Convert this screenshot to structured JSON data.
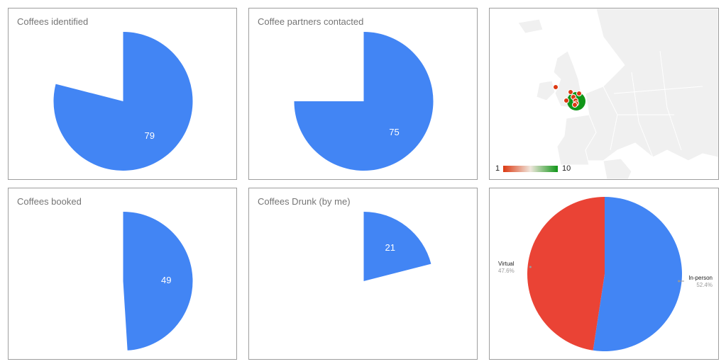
{
  "chart_data": [
    {
      "type": "pie",
      "title": "Coffees identified",
      "value": 79,
      "max": 100,
      "data_label": "79",
      "color": "#4285f4"
    },
    {
      "type": "pie",
      "title": "Coffee partners contacted",
      "value": 75,
      "max": 100,
      "data_label": "75",
      "color": "#4285f4"
    },
    {
      "type": "geo",
      "region": "Europe",
      "legend": {
        "min_label": "1",
        "max_label": "10",
        "min_color": "#dc3912",
        "mid_color": "#efe6dc",
        "max_color": "#109618"
      },
      "markers": [
        {
          "area": "Northern Ireland",
          "value": 1
        },
        {
          "area": "England (cluster)",
          "value": 10
        },
        {
          "area": "England",
          "value": 1
        },
        {
          "area": "England",
          "value": 1
        },
        {
          "area": "England",
          "value": 1
        },
        {
          "area": "England",
          "value": 1
        },
        {
          "area": "England",
          "value": 1
        },
        {
          "area": "England",
          "value": 1
        }
      ]
    },
    {
      "type": "pie",
      "title": "Coffees booked",
      "value": 49,
      "max": 100,
      "data_label": "49",
      "color": "#4285f4"
    },
    {
      "type": "pie",
      "title": "Coffees Drunk (by me)",
      "value": 21,
      "max": 100,
      "data_label": "21",
      "color": "#4285f4"
    },
    {
      "type": "pie",
      "title": "",
      "slices": [
        {
          "label": "In-person",
          "value": 52.4,
          "pct_label": "52.4%",
          "color": "#4285f4"
        },
        {
          "label": "Virtual",
          "value": 47.6,
          "pct_label": "47.6%",
          "color": "#ea4335"
        }
      ]
    }
  ]
}
